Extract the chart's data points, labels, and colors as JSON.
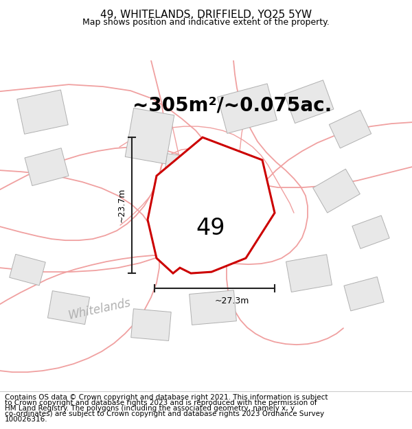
{
  "title": "49, WHITELANDS, DRIFFIELD, YO25 5YW",
  "subtitle": "Map shows position and indicative extent of the property.",
  "area_text": "~305m²/~0.075ac.",
  "label_49": "49",
  "dim_vertical": "~23.7m",
  "dim_horizontal": "~27.3m",
  "road_label": "Whitelands",
  "footer_lines": [
    "Contains OS data © Crown copyright and database right 2021. This information is subject",
    "to Crown copyright and database rights 2023 and is reproduced with the permission of",
    "HM Land Registry. The polygons (including the associated geometry, namely x, y",
    "co-ordinates) are subject to Crown copyright and database rights 2023 Ordnance Survey",
    "100026316."
  ],
  "bg_color": "#ffffff",
  "map_bg": "#ffffff",
  "building_color": "#e8e8e8",
  "building_edge": "#b0b0b0",
  "road_line_color": "#f0a0a0",
  "boundary_color": "#cc0000",
  "dim_line_color": "#222222",
  "title_fontsize": 11,
  "subtitle_fontsize": 9,
  "area_fontsize": 20,
  "label_fontsize": 24,
  "footer_fontsize": 7.5,
  "road_label_fontsize": 12
}
